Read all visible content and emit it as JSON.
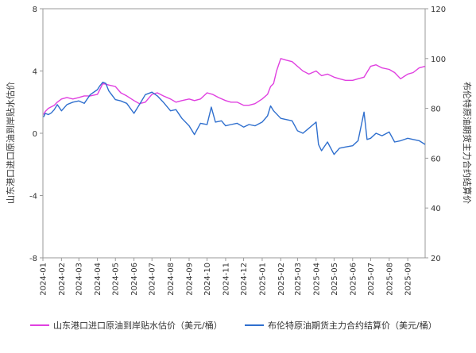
{
  "chart_data": {
    "type": "line",
    "ylabel_left": "山东港口进口原油到岸贴水估价",
    "ylabel_right": "布伦特原油期货主力合约结算价",
    "ylim_left": [
      -8,
      8
    ],
    "yticks_left": [
      "8",
      "4",
      "0",
      "-4",
      "-8"
    ],
    "ylim_right": [
      20,
      120
    ],
    "yticks_right": [
      "120",
      "100",
      "80",
      "60",
      "40",
      "20"
    ],
    "xticks": [
      "2024-01",
      "2024-02",
      "2024-03",
      "2024-04",
      "2024-05",
      "2024-06",
      "2024-07",
      "2024-08",
      "2024-09",
      "2024-10",
      "2024-11",
      "2024-12",
      "2025-01",
      "2025-02",
      "2025-03",
      "2025-04",
      "2025-05",
      "2025-06",
      "2025-07",
      "2025-08",
      "2025-09"
    ],
    "x_range": [
      "2024-01-01",
      "2025-09-30"
    ],
    "grid": false,
    "legend_position": "bottom",
    "series": [
      {
        "name": "山东港口进口原油到岸贴水估价（美元/桶）",
        "axis": "left",
        "color": "#e040e0",
        "points": [
          [
            "2024-01-02",
            1.2
          ],
          [
            "2024-01-05",
            1.4
          ],
          [
            "2024-01-10",
            1.6
          ],
          [
            "2024-01-15",
            1.7
          ],
          [
            "2024-01-20",
            1.8
          ],
          [
            "2024-01-25",
            2.0
          ],
          [
            "2024-02-01",
            2.2
          ],
          [
            "2024-02-10",
            2.3
          ],
          [
            "2024-02-20",
            2.2
          ],
          [
            "2024-03-01",
            2.3
          ],
          [
            "2024-03-10",
            2.4
          ],
          [
            "2024-03-20",
            2.4
          ],
          [
            "2024-04-01",
            2.5
          ],
          [
            "2024-04-05",
            2.8
          ],
          [
            "2024-04-10",
            3.2
          ],
          [
            "2024-04-20",
            3.1
          ],
          [
            "2024-05-01",
            3.0
          ],
          [
            "2024-05-10",
            2.6
          ],
          [
            "2024-05-20",
            2.4
          ],
          [
            "2024-06-01",
            2.1
          ],
          [
            "2024-06-10",
            1.9
          ],
          [
            "2024-06-20",
            2.0
          ],
          [
            "2024-07-01",
            2.5
          ],
          [
            "2024-07-10",
            2.6
          ],
          [
            "2024-07-20",
            2.4
          ],
          [
            "2024-08-01",
            2.2
          ],
          [
            "2024-08-10",
            2.0
          ],
          [
            "2024-08-20",
            2.1
          ],
          [
            "2024-09-01",
            2.2
          ],
          [
            "2024-09-10",
            2.1
          ],
          [
            "2024-09-20",
            2.2
          ],
          [
            "2024-10-01",
            2.6
          ],
          [
            "2024-10-10",
            2.5
          ],
          [
            "2024-10-20",
            2.3
          ],
          [
            "2024-11-01",
            2.1
          ],
          [
            "2024-11-10",
            2.0
          ],
          [
            "2024-11-20",
            2.0
          ],
          [
            "2024-12-01",
            1.8
          ],
          [
            "2024-12-10",
            1.8
          ],
          [
            "2024-12-20",
            1.9
          ],
          [
            "2025-01-01",
            2.2
          ],
          [
            "2025-01-10",
            2.5
          ],
          [
            "2025-01-15",
            3.0
          ],
          [
            "2025-01-20",
            3.2
          ],
          [
            "2025-01-25",
            4.0
          ],
          [
            "2025-02-01",
            4.8
          ],
          [
            "2025-02-10",
            4.7
          ],
          [
            "2025-02-20",
            4.6
          ],
          [
            "2025-03-01",
            4.3
          ],
          [
            "2025-03-10",
            4.0
          ],
          [
            "2025-03-20",
            3.8
          ],
          [
            "2025-04-01",
            4.0
          ],
          [
            "2025-04-10",
            3.7
          ],
          [
            "2025-04-20",
            3.8
          ],
          [
            "2025-05-01",
            3.6
          ],
          [
            "2025-05-10",
            3.5
          ],
          [
            "2025-05-20",
            3.4
          ],
          [
            "2025-06-01",
            3.4
          ],
          [
            "2025-06-10",
            3.5
          ],
          [
            "2025-06-20",
            3.6
          ],
          [
            "2025-07-01",
            4.3
          ],
          [
            "2025-07-10",
            4.4
          ],
          [
            "2025-07-20",
            4.2
          ],
          [
            "2025-08-01",
            4.1
          ],
          [
            "2025-08-10",
            3.9
          ],
          [
            "2025-08-20",
            3.5
          ],
          [
            "2025-09-01",
            3.8
          ],
          [
            "2025-09-10",
            3.9
          ],
          [
            "2025-09-20",
            4.2
          ],
          [
            "2025-09-30",
            4.3
          ]
        ]
      },
      {
        "name": "布伦特原油期货主力合约结算价（美元/桶）",
        "axis": "right",
        "color": "#2f6fce",
        "points": [
          [
            "2024-01-02",
            76.5
          ],
          [
            "2024-01-05",
            78.0
          ],
          [
            "2024-01-10",
            77.5
          ],
          [
            "2024-01-15",
            78.2
          ],
          [
            "2024-01-20",
            79.5
          ],
          [
            "2024-01-25",
            81.5
          ],
          [
            "2024-02-01",
            79.0
          ],
          [
            "2024-02-10",
            81.5
          ],
          [
            "2024-02-20",
            82.5
          ],
          [
            "2024-03-01",
            83.0
          ],
          [
            "2024-03-10",
            82.0
          ],
          [
            "2024-03-20",
            85.5
          ],
          [
            "2024-04-01",
            87.5
          ],
          [
            "2024-04-05",
            89.0
          ],
          [
            "2024-04-10",
            90.5
          ],
          [
            "2024-04-15",
            90.0
          ],
          [
            "2024-04-20",
            87.0
          ],
          [
            "2024-05-01",
            83.5
          ],
          [
            "2024-05-10",
            83.0
          ],
          [
            "2024-05-20",
            82.0
          ],
          [
            "2024-06-01",
            78.0
          ],
          [
            "2024-06-10",
            81.5
          ],
          [
            "2024-06-20",
            85.5
          ],
          [
            "2024-07-01",
            86.5
          ],
          [
            "2024-07-10",
            85.0
          ],
          [
            "2024-07-20",
            82.5
          ],
          [
            "2024-08-01",
            79.0
          ],
          [
            "2024-08-10",
            79.5
          ],
          [
            "2024-08-20",
            76.0
          ],
          [
            "2024-09-01",
            73.0
          ],
          [
            "2024-09-10",
            69.5
          ],
          [
            "2024-09-20",
            74.0
          ],
          [
            "2024-10-01",
            73.5
          ],
          [
            "2024-10-08",
            80.5
          ],
          [
            "2024-10-15",
            74.5
          ],
          [
            "2024-10-25",
            75.0
          ],
          [
            "2024-11-01",
            73.0
          ],
          [
            "2024-11-10",
            73.5
          ],
          [
            "2024-11-20",
            74.0
          ],
          [
            "2024-12-01",
            72.5
          ],
          [
            "2024-12-10",
            73.5
          ],
          [
            "2024-12-20",
            73.0
          ],
          [
            "2025-01-01",
            74.5
          ],
          [
            "2025-01-10",
            77.0
          ],
          [
            "2025-01-15",
            81.0
          ],
          [
            "2025-01-20",
            79.0
          ],
          [
            "2025-02-01",
            76.0
          ],
          [
            "2025-02-10",
            75.5
          ],
          [
            "2025-02-20",
            75.0
          ],
          [
            "2025-03-01",
            71.0
          ],
          [
            "2025-03-10",
            70.0
          ],
          [
            "2025-03-20",
            72.0
          ],
          [
            "2025-04-01",
            74.5
          ],
          [
            "2025-04-05",
            65.5
          ],
          [
            "2025-04-10",
            63.0
          ],
          [
            "2025-04-20",
            66.5
          ],
          [
            "2025-05-01",
            61.5
          ],
          [
            "2025-05-10",
            64.0
          ],
          [
            "2025-05-20",
            64.5
          ],
          [
            "2025-06-01",
            65.0
          ],
          [
            "2025-06-10",
            67.0
          ],
          [
            "2025-06-20",
            78.5
          ],
          [
            "2025-06-25",
            67.5
          ],
          [
            "2025-07-01",
            68.0
          ],
          [
            "2025-07-10",
            70.0
          ],
          [
            "2025-07-20",
            69.0
          ],
          [
            "2025-08-01",
            70.5
          ],
          [
            "2025-08-10",
            66.5
          ],
          [
            "2025-08-20",
            67.0
          ],
          [
            "2025-09-01",
            68.0
          ],
          [
            "2025-09-10",
            67.5
          ],
          [
            "2025-09-20",
            67.0
          ],
          [
            "2025-09-30",
            65.5
          ]
        ]
      }
    ]
  }
}
